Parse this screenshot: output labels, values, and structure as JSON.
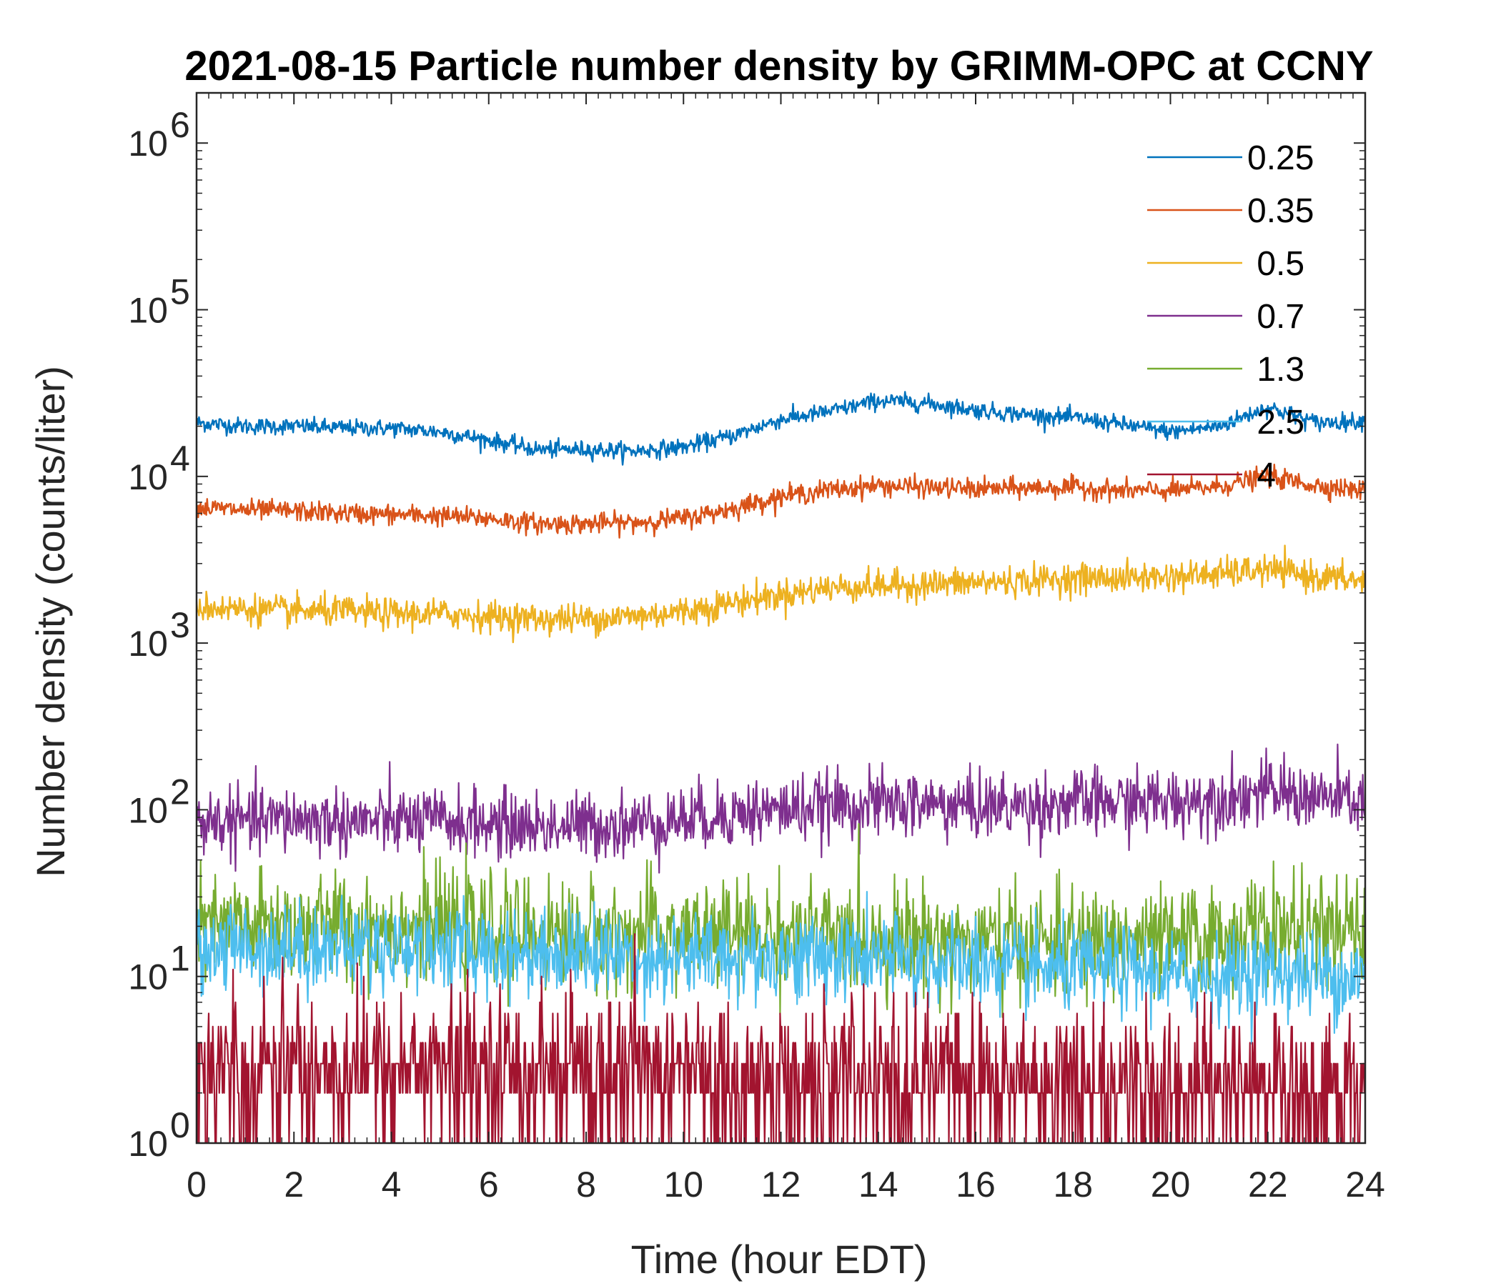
{
  "chart_data": {
    "type": "line",
    "title": "2021-08-15 Particle number density by GRIMM-OPC at CCNY",
    "xlabel": "Time (hour EDT)",
    "ylabel": "Number density (counts/liter)",
    "xlim": [
      0,
      24
    ],
    "ylim": [
      1,
      2000000
    ],
    "yscale": "log",
    "x_ticks": [
      0,
      2,
      4,
      6,
      8,
      10,
      12,
      14,
      16,
      18,
      20,
      22,
      24
    ],
    "x_tick_labels": [
      "0",
      "2",
      "4",
      "6",
      "8",
      "10",
      "12",
      "14",
      "16",
      "18",
      "20",
      "22",
      "24"
    ],
    "y_ticks": [
      1,
      10,
      100,
      1000,
      10000,
      100000,
      1000000
    ],
    "y_tick_labels": [
      {
        "base": "10",
        "exp": "0"
      },
      {
        "base": "10",
        "exp": "1"
      },
      {
        "base": "10",
        "exp": "2"
      },
      {
        "base": "10",
        "exp": "3"
      },
      {
        "base": "10",
        "exp": "4"
      },
      {
        "base": "10",
        "exp": "5"
      },
      {
        "base": "10",
        "exp": "6"
      }
    ],
    "legend_position": "top-right",
    "x": [
      0,
      1,
      2,
      3,
      4,
      5,
      6,
      7,
      8,
      9,
      10,
      11,
      12,
      13,
      14,
      15,
      16,
      17,
      18,
      19,
      20,
      21,
      22,
      23,
      24
    ],
    "series": [
      {
        "name": "0.25",
        "color": "#0072BD",
        "noise": 0.025,
        "values": [
          21000,
          20000,
          20000,
          19500,
          19500,
          18500,
          16500,
          14500,
          14500,
          14200,
          15000,
          17500,
          22000,
          24500,
          28500,
          27500,
          25000,
          23500,
          22500,
          20500,
          18500,
          20000,
          26000,
          21000,
          21500
        ]
      },
      {
        "name": "0.35",
        "color": "#D95319",
        "noise": 0.03,
        "values": [
          6500,
          6300,
          6200,
          6000,
          5900,
          5800,
          5600,
          5200,
          5200,
          5300,
          5600,
          6400,
          7600,
          8300,
          8800,
          8600,
          8400,
          8500,
          8600,
          8200,
          8200,
          8700,
          10000,
          8800,
          8200
        ]
      },
      {
        "name": " 0.5",
        "color": "#EDB120",
        "noise": 0.045,
        "values": [
          1650,
          1600,
          1550,
          1550,
          1500,
          1500,
          1450,
          1400,
          1400,
          1450,
          1550,
          1750,
          1950,
          2150,
          2200,
          2250,
          2300,
          2350,
          2450,
          2450,
          2500,
          2600,
          2750,
          2500,
          2350
        ]
      },
      {
        "name": " 0.7",
        "color": "#7E2F8E",
        "noise": 0.1,
        "values": [
          85,
          85,
          88,
          85,
          85,
          85,
          82,
          80,
          80,
          82,
          88,
          95,
          100,
          105,
          108,
          108,
          105,
          105,
          110,
          110,
          112,
          118,
          128,
          118,
          112
        ]
      },
      {
        "name": " 1.3",
        "color": "#77AC30",
        "noise": 0.16,
        "values": [
          19,
          20,
          20,
          20,
          20,
          20,
          19,
          18,
          18,
          18,
          18,
          18,
          18,
          17,
          17,
          17,
          16,
          16,
          16,
          16,
          16,
          17,
          20,
          18,
          18
        ]
      },
      {
        "name": " 2.5",
        "color": "#4DBEEE",
        "noise": 0.13,
        "values": [
          15,
          15,
          15,
          15,
          15,
          15,
          14,
          14,
          14,
          13,
          13,
          13,
          13,
          13,
          13,
          12,
          12,
          11,
          11,
          11,
          10,
          10,
          11,
          10,
          10
        ]
      },
      {
        "name": " 4",
        "color": "#A2142F",
        "noise": 0.22,
        "values": [
          3,
          3,
          3,
          3,
          3,
          3,
          3,
          3,
          3,
          3,
          2.8,
          2.6,
          2.6,
          2.6,
          2.6,
          2.6,
          2.4,
          2.4,
          2.4,
          2.3,
          2.2,
          2.2,
          2.3,
          2.2,
          2.2
        ]
      }
    ]
  }
}
